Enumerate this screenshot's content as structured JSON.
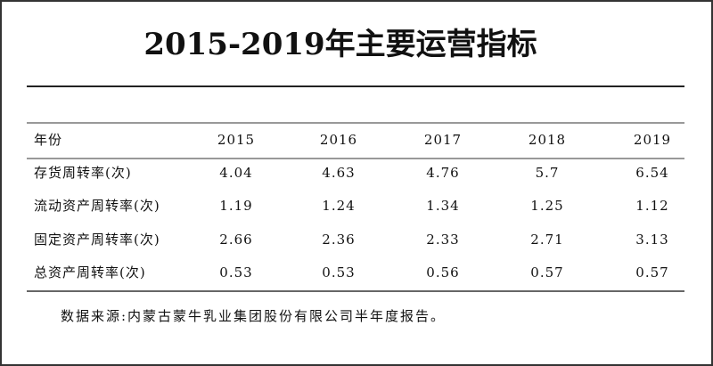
{
  "title": "2015-2019年主要运营指标",
  "table": {
    "header": [
      "年份",
      "2015",
      "2016",
      "2017",
      "2018",
      "2019"
    ],
    "rows": [
      [
        "存货周转率(次)",
        "4.04",
        "4.63",
        "4.76",
        "5.7",
        "6.54"
      ],
      [
        "流动资产周转率(次)",
        "1.19",
        "1.24",
        "1.34",
        "1.25",
        "1.12"
      ],
      [
        "固定资产周转率(次)",
        "2.66",
        "2.36",
        "2.33",
        "2.71",
        "3.13"
      ],
      [
        "总资产周转率(次)",
        "0.53",
        "0.53",
        "0.56",
        "0.57",
        "0.57"
      ]
    ]
  },
  "source": "数据来源:内蒙古蒙牛乳业集团股份有限公司半年度报告。"
}
